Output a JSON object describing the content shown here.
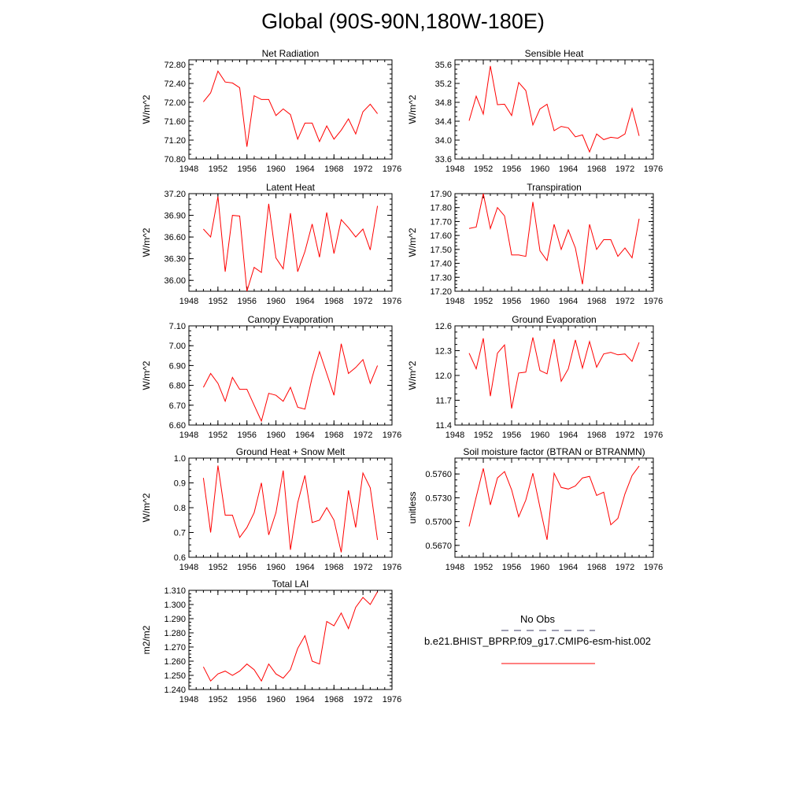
{
  "figure": {
    "title": "Global (90S-90N,180W-180E)"
  },
  "legend": {
    "entries": [
      {
        "label": "No Obs",
        "color": "#3b3b66",
        "style": "dashed"
      },
      {
        "label": "b.e21.BHIST_BPRP.f09_g17.CMIP6-esm-hist.002",
        "color": "#ff0000",
        "style": "solid"
      }
    ]
  },
  "chart_data": [
    {
      "type": "line",
      "title": "Net Radiation",
      "ylabel": "W/m^2",
      "xlim": [
        1948,
        1976
      ],
      "xticks": [
        1948,
        1952,
        1956,
        1960,
        1964,
        1968,
        1972,
        1976
      ],
      "ylim": [
        70.8,
        72.9
      ],
      "yticks": [
        "70.80",
        "71.20",
        "71.60",
        "72.00",
        "72.40",
        "72.80"
      ],
      "series": [
        {
          "color": "#ff0000",
          "x": [
            1950,
            1951,
            1952,
            1953,
            1954,
            1955,
            1956,
            1957,
            1958,
            1959,
            1960,
            1961,
            1962,
            1963,
            1964,
            1965,
            1966,
            1967,
            1968,
            1969,
            1970,
            1971,
            1972,
            1973,
            1974
          ],
          "y": [
            72.01,
            72.2,
            72.66,
            72.43,
            72.41,
            72.31,
            71.06,
            72.14,
            72.06,
            72.06,
            71.72,
            71.86,
            71.74,
            71.22,
            71.56,
            71.56,
            71.17,
            71.5,
            71.22,
            71.41,
            71.65,
            71.33,
            71.8,
            71.96,
            71.76
          ]
        }
      ]
    },
    {
      "type": "line",
      "title": "Sensible Heat",
      "ylabel": "W/m^2",
      "xlim": [
        1948,
        1976
      ],
      "xticks": [
        1948,
        1952,
        1956,
        1960,
        1964,
        1968,
        1972,
        1976
      ],
      "ylim": [
        33.6,
        35.7
      ],
      "yticks": [
        "33.6",
        "34.0",
        "34.4",
        "34.8",
        "35.2",
        "35.6"
      ],
      "series": [
        {
          "color": "#ff0000",
          "x": [
            1950,
            1951,
            1952,
            1953,
            1954,
            1955,
            1956,
            1957,
            1958,
            1959,
            1960,
            1961,
            1962,
            1963,
            1964,
            1965,
            1966,
            1967,
            1968,
            1969,
            1970,
            1971,
            1972,
            1973,
            1974
          ],
          "y": [
            34.41,
            34.93,
            34.55,
            35.57,
            34.75,
            34.76,
            34.52,
            35.22,
            35.05,
            34.32,
            34.66,
            34.76,
            34.2,
            34.29,
            34.26,
            34.07,
            34.11,
            33.75,
            34.13,
            34.01,
            34.06,
            34.04,
            34.13,
            34.67,
            34.09
          ]
        }
      ]
    },
    {
      "type": "line",
      "title": "Latent Heat",
      "ylabel": "W/m^2",
      "xlim": [
        1948,
        1976
      ],
      "xticks": [
        1948,
        1952,
        1956,
        1960,
        1964,
        1968,
        1972,
        1976
      ],
      "ylim": [
        35.85,
        37.2
      ],
      "yticks": [
        "36.00",
        "36.30",
        "36.60",
        "36.90",
        "37.20"
      ],
      "series": [
        {
          "color": "#ff0000",
          "x": [
            1950,
            1951,
            1952,
            1953,
            1954,
            1955,
            1956,
            1957,
            1958,
            1959,
            1960,
            1961,
            1962,
            1963,
            1964,
            1965,
            1966,
            1967,
            1968,
            1969,
            1970,
            1971,
            1972,
            1973,
            1974
          ],
          "y": [
            36.71,
            36.6,
            37.16,
            36.12,
            36.9,
            36.89,
            35.85,
            36.18,
            36.11,
            37.06,
            36.31,
            36.16,
            36.93,
            36.12,
            36.4,
            36.78,
            36.32,
            36.94,
            36.37,
            36.84,
            36.73,
            36.6,
            36.71,
            36.42,
            37.03
          ]
        }
      ]
    },
    {
      "type": "line",
      "title": "Transpiration",
      "ylabel": "W/m^2",
      "xlim": [
        1948,
        1976
      ],
      "xticks": [
        1948,
        1952,
        1956,
        1960,
        1964,
        1968,
        1972,
        1976
      ],
      "ylim": [
        17.2,
        17.9
      ],
      "yticks": [
        "17.20",
        "17.30",
        "17.40",
        "17.50",
        "17.60",
        "17.70",
        "17.80",
        "17.90"
      ],
      "series": [
        {
          "color": "#ff0000",
          "x": [
            1950,
            1951,
            1952,
            1953,
            1954,
            1955,
            1956,
            1957,
            1958,
            1959,
            1960,
            1961,
            1962,
            1963,
            1964,
            1965,
            1966,
            1967,
            1968,
            1969,
            1970,
            1971,
            1972,
            1973,
            1974
          ],
          "y": [
            17.65,
            17.66,
            17.9,
            17.65,
            17.8,
            17.74,
            17.46,
            17.46,
            17.45,
            17.84,
            17.49,
            17.42,
            17.68,
            17.5,
            17.64,
            17.51,
            17.25,
            17.68,
            17.5,
            17.57,
            17.57,
            17.45,
            17.51,
            17.44,
            17.72
          ]
        }
      ]
    },
    {
      "type": "line",
      "title": "Canopy Evaporation",
      "ylabel": "W/m^2",
      "xlim": [
        1948,
        1976
      ],
      "xticks": [
        1948,
        1952,
        1956,
        1960,
        1964,
        1968,
        1972,
        1976
      ],
      "ylim": [
        6.6,
        7.1
      ],
      "yticks": [
        "6.60",
        "6.70",
        "6.80",
        "6.90",
        "7.00",
        "7.10"
      ],
      "series": [
        {
          "color": "#ff0000",
          "x": [
            1950,
            1951,
            1952,
            1953,
            1954,
            1955,
            1956,
            1957,
            1958,
            1959,
            1960,
            1961,
            1962,
            1963,
            1964,
            1965,
            1966,
            1967,
            1968,
            1969,
            1970,
            1971,
            1972,
            1973,
            1974
          ],
          "y": [
            6.79,
            6.86,
            6.81,
            6.72,
            6.84,
            6.78,
            6.78,
            6.7,
            6.62,
            6.76,
            6.75,
            6.72,
            6.79,
            6.69,
            6.68,
            6.84,
            6.97,
            6.86,
            6.75,
            7.01,
            6.86,
            6.89,
            6.93,
            6.81,
            6.9
          ]
        }
      ]
    },
    {
      "type": "line",
      "title": "Ground Evaporation",
      "ylabel": "W/m^2",
      "xlim": [
        1948,
        1976
      ],
      "xticks": [
        1948,
        1952,
        1956,
        1960,
        1964,
        1968,
        1972,
        1976
      ],
      "ylim": [
        11.4,
        12.6
      ],
      "yticks": [
        "11.4",
        "11.7",
        "12.0",
        "12.3",
        "12.6"
      ],
      "series": [
        {
          "color": "#ff0000",
          "x": [
            1950,
            1951,
            1952,
            1953,
            1954,
            1955,
            1956,
            1957,
            1958,
            1959,
            1960,
            1961,
            1962,
            1963,
            1964,
            1965,
            1966,
            1967,
            1968,
            1969,
            1970,
            1971,
            1972,
            1973,
            1974
          ],
          "y": [
            12.27,
            12.08,
            12.45,
            11.75,
            12.27,
            12.37,
            11.6,
            12.03,
            12.04,
            12.46,
            12.06,
            12.02,
            12.44,
            11.93,
            12.08,
            12.43,
            12.09,
            12.41,
            12.1,
            12.26,
            12.28,
            12.25,
            12.26,
            12.17,
            12.4
          ]
        }
      ]
    },
    {
      "type": "line",
      "title": "Ground Heat + Snow Melt",
      "ylabel": "W/m^2",
      "xlim": [
        1948,
        1976
      ],
      "xticks": [
        1948,
        1952,
        1956,
        1960,
        1964,
        1968,
        1972,
        1976
      ],
      "ylim": [
        0.6,
        1.0
      ],
      "yticks": [
        "0.6",
        "0.7",
        "0.8",
        "0.9",
        "1.0"
      ],
      "series": [
        {
          "color": "#ff0000",
          "x": [
            1950,
            1951,
            1952,
            1953,
            1954,
            1955,
            1956,
            1957,
            1958,
            1959,
            1960,
            1961,
            1962,
            1963,
            1964,
            1965,
            1966,
            1967,
            1968,
            1969,
            1970,
            1971,
            1972,
            1973,
            1974
          ],
          "y": [
            0.92,
            0.7,
            0.97,
            0.77,
            0.77,
            0.68,
            0.72,
            0.78,
            0.9,
            0.69,
            0.78,
            0.95,
            0.63,
            0.82,
            0.93,
            0.74,
            0.75,
            0.8,
            0.75,
            0.62,
            0.87,
            0.72,
            0.94,
            0.88,
            0.67
          ]
        }
      ]
    },
    {
      "type": "line",
      "title": "Soil moisture factor (BTRAN or BTRANMN)",
      "ylabel": "unitless",
      "xlim": [
        1948,
        1976
      ],
      "xticks": [
        1948,
        1952,
        1956,
        1960,
        1964,
        1968,
        1972,
        1976
      ],
      "ylim": [
        0.5655,
        0.578
      ],
      "yticks": [
        "0.5670",
        "0.5700",
        "0.5730",
        "0.5760"
      ],
      "series": [
        {
          "color": "#ff0000",
          "x": [
            1950,
            1951,
            1952,
            1953,
            1954,
            1955,
            1956,
            1957,
            1958,
            1959,
            1960,
            1961,
            1962,
            1963,
            1964,
            1965,
            1966,
            1967,
            1968,
            1969,
            1970,
            1971,
            1972,
            1973,
            1974
          ],
          "y": [
            0.5694,
            0.5731,
            0.5767,
            0.5721,
            0.5755,
            0.5763,
            0.574,
            0.5706,
            0.5727,
            0.5761,
            0.5718,
            0.5677,
            0.5761,
            0.5743,
            0.5741,
            0.5745,
            0.5755,
            0.5757,
            0.5733,
            0.5737,
            0.5696,
            0.5704,
            0.5735,
            0.5758,
            0.577
          ]
        }
      ]
    },
    {
      "type": "line",
      "title": "Total LAI",
      "ylabel": "m2/m2",
      "xlim": [
        1948,
        1976
      ],
      "xticks": [
        1948,
        1952,
        1956,
        1960,
        1964,
        1968,
        1972,
        1976
      ],
      "ylim": [
        1.24,
        1.31
      ],
      "yticks": [
        "1.240",
        "1.250",
        "1.260",
        "1.270",
        "1.280",
        "1.290",
        "1.300",
        "1.310"
      ],
      "series": [
        {
          "color": "#ff0000",
          "x": [
            1950,
            1951,
            1952,
            1953,
            1954,
            1955,
            1956,
            1957,
            1958,
            1959,
            1960,
            1961,
            1962,
            1963,
            1964,
            1965,
            1966,
            1967,
            1968,
            1969,
            1970,
            1971,
            1972,
            1973,
            1974
          ],
          "y": [
            1.256,
            1.246,
            1.251,
            1.253,
            1.25,
            1.253,
            1.258,
            1.254,
            1.246,
            1.258,
            1.251,
            1.248,
            1.254,
            1.269,
            1.278,
            1.26,
            1.258,
            1.288,
            1.285,
            1.294,
            1.283,
            1.298,
            1.305,
            1.3,
            1.309
          ]
        }
      ]
    }
  ]
}
